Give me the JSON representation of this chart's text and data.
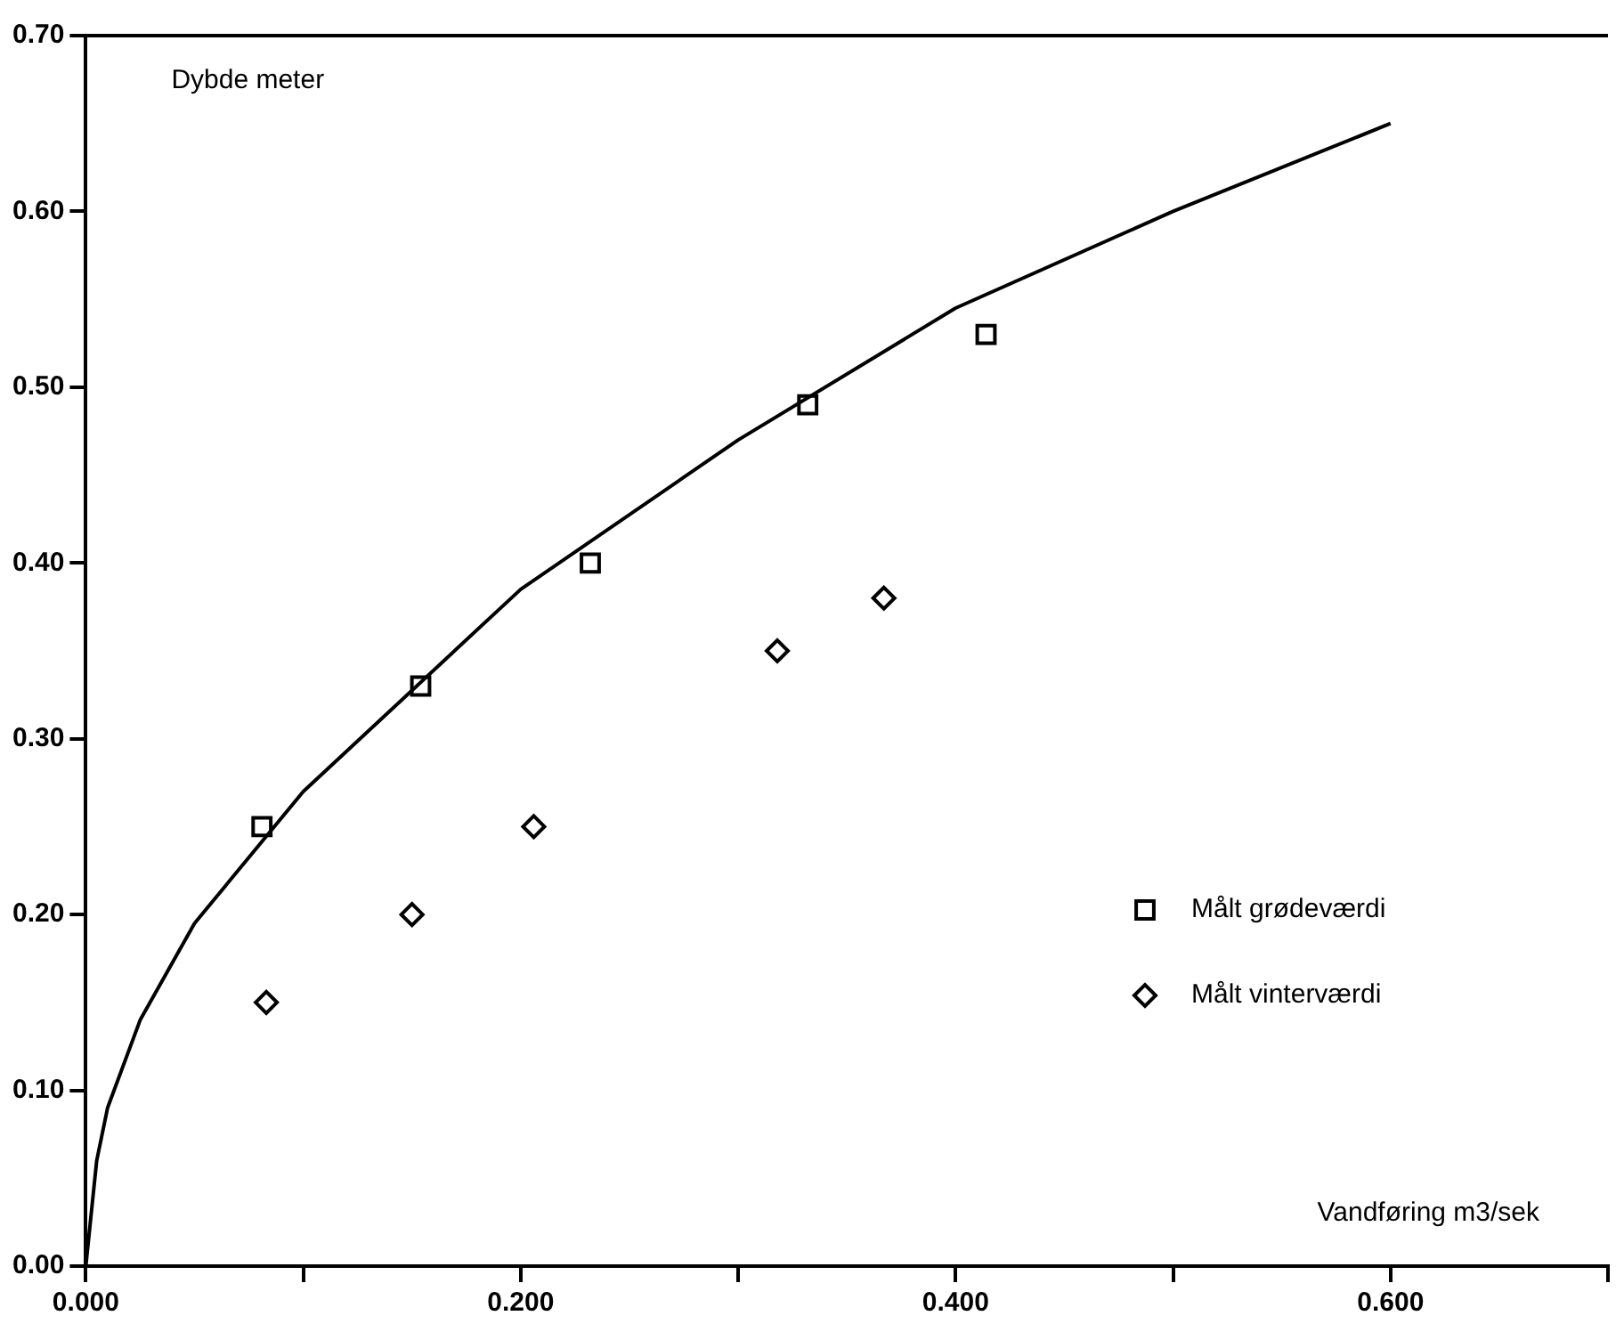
{
  "chart_data": {
    "type": "scatter",
    "xlabel": "Vandføring m3/sek",
    "ylabel": "Dybde meter",
    "xlim": [
      0,
      0.7
    ],
    "ylim": [
      0,
      0.7
    ],
    "xticks": [
      {
        "value": 0,
        "label": "0.000"
      },
      {
        "value": 0.1,
        "label": null
      },
      {
        "value": 0.2,
        "label": "0.200"
      },
      {
        "value": 0.3,
        "label": null
      },
      {
        "value": 0.4,
        "label": "0.400"
      },
      {
        "value": 0.5,
        "label": null
      },
      {
        "value": 0.6,
        "label": "0.600"
      },
      {
        "value": 0.7,
        "label": null
      }
    ],
    "yticks": [
      {
        "value": 0,
        "label": "0.00"
      },
      {
        "value": 0.1,
        "label": "0.10"
      },
      {
        "value": 0.2,
        "label": "0.20"
      },
      {
        "value": 0.3,
        "label": "0.30"
      },
      {
        "value": 0.4,
        "label": "0.40"
      },
      {
        "value": 0.5,
        "label": "0.50"
      },
      {
        "value": 0.6,
        "label": "0.60"
      },
      {
        "value": 0.7,
        "label": "0.70"
      }
    ],
    "grid": false,
    "legend": "bottom right",
    "series": [
      {
        "type": "line",
        "color": "#000000",
        "marker": "none",
        "line_style": "solid",
        "x": [
          0,
          0.005,
          0.01,
          0.025,
          0.05,
          0.1,
          0.2,
          0.3,
          0.4,
          0.5,
          0.6
        ],
        "values": [
          0,
          0.06,
          0.09,
          0.14,
          0.195,
          0.27,
          0.385,
          0.47,
          0.545,
          0.6,
          0.65
        ]
      },
      {
        "name": "Målt grødeværdi",
        "color": "#000000",
        "marker": "square",
        "x": [
          0.081,
          0.154,
          0.232,
          0.332,
          0.414
        ],
        "values": [
          0.25,
          0.33,
          0.4,
          0.49,
          0.53
        ]
      },
      {
        "name": "Målt vinterværdi",
        "color": "#000000",
        "marker": "diamond",
        "x": [
          0.083,
          0.15,
          0.206,
          0.318,
          0.367
        ],
        "values": [
          0.15,
          0.2,
          0.25,
          0.35,
          0.38
        ]
      }
    ]
  }
}
